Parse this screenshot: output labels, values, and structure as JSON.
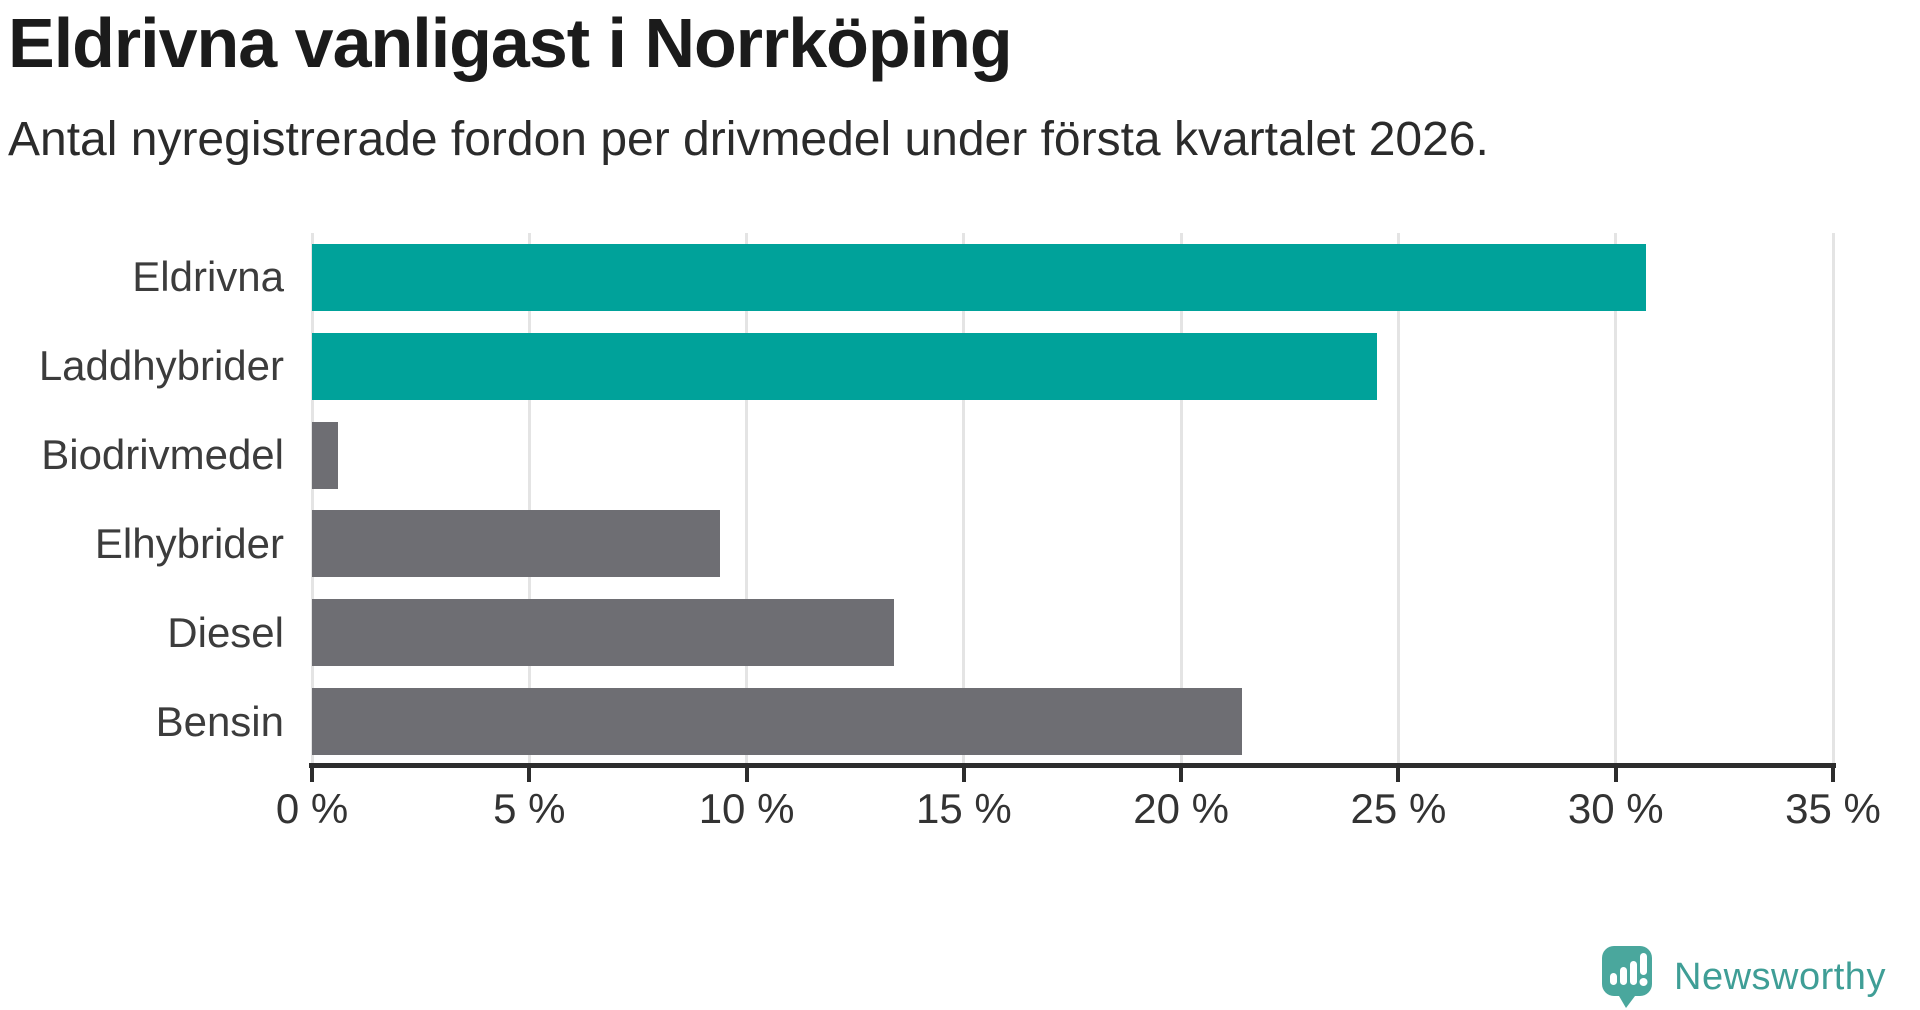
{
  "title": "Eldrivna vanligast i Norrköping",
  "subtitle": "Antal nyregistrerade fordon per drivmedel under första kvartalet 2026.",
  "chart_data": {
    "type": "bar",
    "orientation": "horizontal",
    "title": "Eldrivna vanligast i Norrköping",
    "subtitle": "Antal nyregistrerade fordon per drivmedel under första kvartalet 2026.",
    "categories": [
      "Eldrivna",
      "Laddhybrider",
      "Biodrivmedel",
      "Elhybrider",
      "Diesel",
      "Bensin"
    ],
    "values": [
      30.7,
      24.5,
      0.6,
      9.4,
      13.4,
      21.4
    ],
    "unit": "%",
    "bar_colors": [
      "#00a29a",
      "#00a29a",
      "#6e6e73",
      "#6e6e73",
      "#6e6e73",
      "#6e6e73"
    ],
    "highlight_color": "#00a29a",
    "default_color": "#6e6e73",
    "xlabel": "",
    "ylabel": "",
    "xlim": [
      0,
      35
    ],
    "x_ticks": [
      0,
      5,
      10,
      15,
      20,
      25,
      30,
      35
    ],
    "x_tick_labels": [
      "0 %",
      "5 %",
      "10 %",
      "15 %",
      "20 %",
      "25 %",
      "30 %",
      "35 %"
    ],
    "grid": true,
    "legend": false
  },
  "branding": {
    "logo_text": "Newsworthy",
    "logo_text_color": "#3f9e96",
    "logo_icon_color": "#4aa79d",
    "logo_icon_name": "newsworthy-chart-bubble-icon"
  }
}
